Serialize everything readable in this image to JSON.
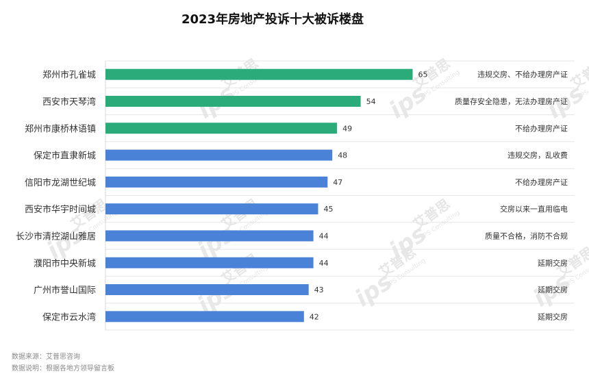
{
  "title": "2023年房地产投诉十大被诉楼盘",
  "source": {
    "line1": "数据来源：艾普思咨询",
    "line2": "数据说明：根据各地方领导留言板"
  },
  "watermark": {
    "brand": "艾普思",
    "logo": "ips",
    "sub": "IPS Consulting"
  },
  "colors": {
    "top3": "#2bab7a",
    "rest": "#4a82d8",
    "grid": "#e5e5e5"
  },
  "chart_data": {
    "type": "bar",
    "orientation": "horizontal",
    "title": "2023年房地产投诉十大被诉楼盘",
    "categories": [
      "郑州市孔雀城",
      "西安市天琴湾",
      "郑州市康桥林语镇",
      "保定市直隶新城",
      "信阳市龙湖世纪城",
      "西安市华宇时间城",
      "长沙市清控湖山雅居",
      "濮阳市中央新城",
      "广州市誉山国际",
      "保定市云水湾"
    ],
    "values": [
      65,
      54,
      49,
      48,
      47,
      45,
      44,
      44,
      43,
      42
    ],
    "notes": [
      "违规交房、不给办理房产证",
      "质量存安全隐患，无法办理房产证",
      "不给办理房产证",
      "违规交房，乱收费",
      "不给办理房产证",
      "交房以来一直用临电",
      "质量不合格，消防不合规",
      "延期交房",
      "延期交房",
      "延期交房"
    ],
    "highlight_count": 3,
    "xlim": [
      0,
      100
    ],
    "grid": true,
    "legend": "none"
  }
}
